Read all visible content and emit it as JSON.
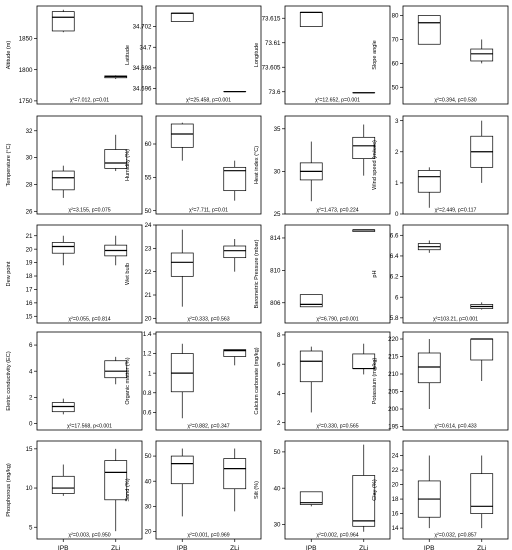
{
  "figure": {
    "x_categories": [
      "IPB",
      "ZLi"
    ]
  },
  "chart_data": [
    {
      "type": "box",
      "ylabel": "Altitude (m)",
      "ylim": [
        1745,
        1902
      ],
      "yticks": [
        1750,
        1800,
        1850
      ],
      "stat": "χ²=7.012, p=0.01",
      "boxes": [
        {
          "name": "IPB",
          "min": 1860,
          "q1": 1862,
          "median": 1884,
          "q3": 1893,
          "max": 1896
        },
        {
          "name": "ZLi",
          "min": 1785,
          "q1": 1787,
          "median": 1789,
          "q3": 1790,
          "max": 1791
        }
      ]
    },
    {
      "type": "box",
      "ylabel": "Latitude",
      "ylim": [
        34.6945,
        34.704
      ],
      "yticks": [
        34.696,
        34.698,
        34.7,
        34.702
      ],
      "stat": "χ²=25.458, p=0.001",
      "boxes": [
        {
          "name": "IPB",
          "min": 34.7025,
          "q1": 34.7025,
          "median": 34.7033,
          "q3": 34.7033,
          "max": 34.7033
        },
        {
          "name": "ZLi",
          "min": 34.6957,
          "q1": 34.6957,
          "median": 34.6957,
          "q3": 34.6957,
          "max": 34.6957
        }
      ]
    },
    {
      "type": "box",
      "ylabel": "Longitude",
      "ylim": [
        73.5975,
        73.6175
      ],
      "yticks": [
        73.6,
        73.605,
        73.61,
        73.615
      ],
      "stat": "χ²=12.652, p=0.001",
      "boxes": [
        {
          "name": "IPB",
          "min": 73.6133,
          "q1": 73.6133,
          "median": 73.6162,
          "q3": 73.6162,
          "max": 73.6162
        },
        {
          "name": "ZLi",
          "min": 73.5998,
          "q1": 73.5998,
          "median": 73.5998,
          "q3": 73.5998,
          "max": 73.5998
        }
      ]
    },
    {
      "type": "box",
      "ylabel": "Slope angle",
      "ylim": [
        43,
        84
      ],
      "yticks": [
        50,
        60,
        70,
        80
      ],
      "stat": "χ²=0.394, p=0.530",
      "boxes": [
        {
          "name": "IPB",
          "min": 68,
          "q1": 68,
          "median": 77,
          "q3": 80,
          "max": 80
        },
        {
          "name": "ZLi",
          "min": 60,
          "q1": 61,
          "median": 64,
          "q3": 66,
          "max": 70
        }
      ]
    },
    {
      "type": "box",
      "ylabel": "Temperature (°C)",
      "ylim": [
        25.8,
        33.1
      ],
      "yticks": [
        26,
        28,
        30,
        32
      ],
      "stat": "χ²=3.155, p=0.075",
      "boxes": [
        {
          "name": "IPB",
          "min": 27,
          "q1": 27.6,
          "median": 28.5,
          "q3": 29,
          "max": 29.4
        },
        {
          "name": "ZLi",
          "min": 29,
          "q1": 29.2,
          "median": 29.6,
          "q3": 30.6,
          "max": 31.7
        }
      ]
    },
    {
      "type": "box",
      "ylabel": "Humidity (%)",
      "ylim": [
        49.5,
        64.2
      ],
      "yticks": [
        50,
        55,
        60
      ],
      "stat": "χ²=7.711, p=0.01",
      "boxes": [
        {
          "name": "IPB",
          "min": 57.5,
          "q1": 59.5,
          "median": 61.5,
          "q3": 63,
          "max": 63.2
        },
        {
          "name": "ZLi",
          "min": 51.5,
          "q1": 53,
          "median": 56,
          "q3": 56.5,
          "max": 57.5
        }
      ]
    },
    {
      "type": "box",
      "ylabel": "Heat index (°C)",
      "ylim": [
        25,
        36.5
      ],
      "yticks": [
        25,
        30,
        35
      ],
      "stat": "χ²=1.473, p=0.224",
      "boxes": [
        {
          "name": "IPB",
          "min": 26.5,
          "q1": 29,
          "median": 30,
          "q3": 31,
          "max": 33.5
        },
        {
          "name": "ZLi",
          "min": 29.5,
          "q1": 31.5,
          "median": 33,
          "q3": 34,
          "max": 35.5
        }
      ]
    },
    {
      "type": "box",
      "ylabel": "Wind speed (m/sec)",
      "ylim": [
        0,
        3.15
      ],
      "yticks": [
        0,
        1,
        2,
        3
      ],
      "stat": "χ²=2.449, p=0.117",
      "boxes": [
        {
          "name": "IPB",
          "min": 0.2,
          "q1": 0.7,
          "median": 1.2,
          "q3": 1.4,
          "max": 1.5
        },
        {
          "name": "ZLi",
          "min": 1,
          "q1": 1.5,
          "median": 2,
          "q3": 2.5,
          "max": 3
        }
      ]
    },
    {
      "type": "box",
      "ylabel": "Dew point",
      "ylim": [
        14.5,
        21.8
      ],
      "yticks": [
        15,
        16,
        17,
        18,
        19,
        20,
        21
      ],
      "stat": "χ²=0.055, p=0.814",
      "boxes": [
        {
          "name": "IPB",
          "min": 18.8,
          "q1": 19.7,
          "median": 20.2,
          "q3": 20.5,
          "max": 21
        },
        {
          "name": "ZLi",
          "min": 18.8,
          "q1": 19.5,
          "median": 19.9,
          "q3": 20.3,
          "max": 21
        }
      ]
    },
    {
      "type": "box",
      "ylabel": "Wet bulb",
      "ylim": [
        19.8,
        24
      ],
      "yticks": [
        20,
        21,
        22,
        23,
        24
      ],
      "stat": "χ²=0.333, p=0.563",
      "boxes": [
        {
          "name": "IPB",
          "min": 20.5,
          "q1": 21.8,
          "median": 22.4,
          "q3": 22.8,
          "max": 23.8
        },
        {
          "name": "ZLi",
          "min": 22,
          "q1": 22.6,
          "median": 22.9,
          "q3": 23.1,
          "max": 23.4
        }
      ]
    },
    {
      "type": "box",
      "ylabel": "Barometric Pressure (mbar)",
      "ylim": [
        803.5,
        815.6
      ],
      "yticks": [
        806,
        810,
        814
      ],
      "stat": "χ²=6.790, p=0.001",
      "boxes": [
        {
          "name": "IPB",
          "min": 805.5,
          "q1": 805.5,
          "median": 805.8,
          "q3": 807,
          "max": 807
        },
        {
          "name": "ZLi",
          "min": 814.8,
          "q1": 814.8,
          "median": 815,
          "q3": 815,
          "max": 815
        }
      ]
    },
    {
      "type": "box",
      "ylabel": "pH",
      "ylim": [
        5.75,
        6.7
      ],
      "yticks": [
        5.8,
        6,
        6.2,
        6.4,
        6.6
      ],
      "stat": "χ²=103.21, p=0.001",
      "boxes": [
        {
          "name": "IPB",
          "min": 6.43,
          "q1": 6.46,
          "median": 6.49,
          "q3": 6.52,
          "max": 6.55
        },
        {
          "name": "ZLi",
          "min": 5.88,
          "q1": 5.89,
          "median": 5.91,
          "q3": 5.93,
          "max": 5.95
        }
      ]
    },
    {
      "type": "box",
      "ylabel": "Eletric conductivity (EC)",
      "ylim": [
        -0.5,
        7
      ],
      "yticks": [
        0,
        2,
        4,
        6
      ],
      "stat": "χ²=17.568, p<0.001",
      "boxes": [
        {
          "name": "IPB",
          "min": 0.7,
          "q1": 0.9,
          "median": 1.3,
          "q3": 1.6,
          "max": 1.9
        },
        {
          "name": "ZLi",
          "min": 3,
          "q1": 3.5,
          "median": 4,
          "q3": 4.8,
          "max": 5.1
        }
      ]
    },
    {
      "type": "box",
      "ylabel": "Organic matter (%)",
      "ylim": [
        0.42,
        1.42
      ],
      "yticks": [
        0.6,
        0.8,
        1,
        1.2,
        1.4
      ],
      "stat": "χ²=0.882, p=0.347",
      "boxes": [
        {
          "name": "IPB",
          "min": 0.54,
          "q1": 0.81,
          "median": 1,
          "q3": 1.2,
          "max": 1.3
        },
        {
          "name": "ZLi",
          "min": 1.08,
          "q1": 1.17,
          "median": 1.23,
          "q3": 1.24,
          "max": 1.24
        }
      ]
    },
    {
      "type": "box",
      "ylabel": "Calcium carbonate (mg/kg)",
      "ylim": [
        1.5,
        8.2
      ],
      "yticks": [
        2,
        4,
        6,
        8
      ],
      "stat": "χ²=0.330, p=0.565",
      "boxes": [
        {
          "name": "IPB",
          "min": 2.7,
          "q1": 4.8,
          "median": 6.2,
          "q3": 6.9,
          "max": 7.2
        },
        {
          "name": "ZLi",
          "min": 5.3,
          "q1": 5.7,
          "median": 5.7,
          "q3": 6.7,
          "max": 7.4
        }
      ]
    },
    {
      "type": "box",
      "ylabel": "Potassium (mg/kg)",
      "ylim": [
        194,
        222
      ],
      "yticks": [
        195,
        200,
        205,
        210,
        215,
        220
      ],
      "stat": "χ²=0.614, p=0.433",
      "boxes": [
        {
          "name": "IPB",
          "min": 200,
          "q1": 207.5,
          "median": 212,
          "q3": 216,
          "max": 220
        },
        {
          "name": "ZLi",
          "min": 208,
          "q1": 214,
          "median": 220,
          "q3": 220,
          "max": 220
        }
      ]
    },
    {
      "type": "box",
      "ylabel": "Phosphorous (mg/kg)",
      "ylim": [
        3.5,
        16
      ],
      "yticks": [
        5,
        10,
        15
      ],
      "stat": "χ²=0.003, p=0.950",
      "boxes": [
        {
          "name": "IPB",
          "min": 9,
          "q1": 9.3,
          "median": 10,
          "q3": 11.5,
          "max": 13
        },
        {
          "name": "ZLi",
          "min": 4.5,
          "q1": 8.5,
          "median": 12,
          "q3": 13.5,
          "max": 15
        }
      ]
    },
    {
      "type": "box",
      "ylabel": "Sand (%)",
      "ylim": [
        17,
        56
      ],
      "yticks": [
        20,
        30,
        40,
        50
      ],
      "stat": "χ²=0.001, p=0.969",
      "boxes": [
        {
          "name": "IPB",
          "min": 26,
          "q1": 39,
          "median": 47,
          "q3": 50,
          "max": 53
        },
        {
          "name": "ZLi",
          "min": 28,
          "q1": 37,
          "median": 45,
          "q3": 49,
          "max": 53
        }
      ]
    },
    {
      "type": "box",
      "ylabel": "Silt (%)",
      "ylim": [
        26,
        53
      ],
      "yticks": [
        30,
        40,
        50
      ],
      "stat": "χ²=0.002, p=0.964",
      "boxes": [
        {
          "name": "IPB",
          "min": 35,
          "q1": 35.5,
          "median": 36,
          "q3": 39,
          "max": 39
        },
        {
          "name": "ZLi",
          "min": 28,
          "q1": 29.5,
          "median": 31,
          "q3": 43.5,
          "max": 52
        }
      ]
    },
    {
      "type": "box",
      "ylabel": "Clay (%)",
      "ylim": [
        12.5,
        26
      ],
      "yticks": [
        14,
        16,
        18,
        20,
        22,
        24
      ],
      "stat": "χ²=0.032, p=0.857",
      "boxes": [
        {
          "name": "IPB",
          "min": 14,
          "q1": 15.5,
          "median": 18,
          "q3": 20.5,
          "max": 24
        },
        {
          "name": "ZLi",
          "min": 14,
          "q1": 16,
          "median": 17,
          "q3": 21.5,
          "max": 24
        }
      ]
    }
  ]
}
